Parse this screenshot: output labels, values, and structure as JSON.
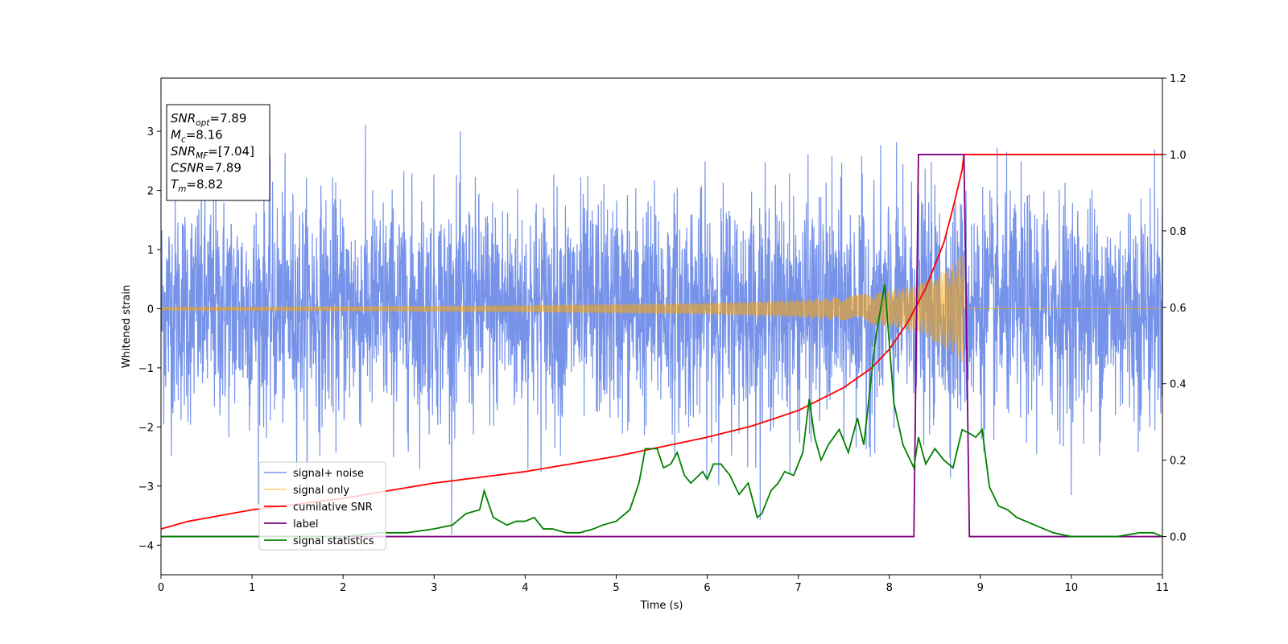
{
  "chart_data": {
    "type": "line",
    "xlabel": "Time (s)",
    "ylabel": "Whitened strain",
    "xlim": [
      0,
      11
    ],
    "ylim": [
      -4.5,
      3.9
    ],
    "ylim_right": [
      -0.1,
      1.2
    ],
    "x_ticks": [
      "0",
      "1",
      "2",
      "3",
      "4",
      "5",
      "6",
      "7",
      "8",
      "9",
      "10",
      "11"
    ],
    "y_ticks": [
      "3",
      "2",
      "1",
      "0",
      "−1",
      "−2",
      "−3",
      "−4"
    ],
    "y_ticks_right": [
      "1.2",
      "1.0",
      "0.8",
      "0.6",
      "0.4",
      "0.2",
      "0.0"
    ],
    "legend_placement": "lower-left",
    "info_box": {
      "lines": [
        {
          "sym": "SNR",
          "sub": "opt",
          "val": "=7.89"
        },
        {
          "sym": "M",
          "sub": "c",
          "val": "=8.16"
        },
        {
          "sym": "SNR",
          "sub": "MF",
          "val": "=[7.04]"
        },
        {
          "sym": "CSNR",
          "sub": "",
          "val": "=7.89"
        },
        {
          "sym": "T",
          "sub": "m",
          "val": "=8.82"
        }
      ]
    },
    "series": [
      {
        "name": "signal+ noise",
        "color": "#4169e1",
        "axis": "left",
        "description": "white noise, std ~1, over 0-11 s",
        "noise_std": 1.0
      },
      {
        "name": "signal only",
        "color": "#ffa500",
        "axis": "left",
        "chirp_start": 0,
        "merger_time": 8.82,
        "amplitude_points": [
          [
            0,
            0.03
          ],
          [
            2,
            0.04
          ],
          [
            4,
            0.06
          ],
          [
            6,
            0.1
          ],
          [
            7,
            0.15
          ],
          [
            7.5,
            0.2
          ],
          [
            8,
            0.3
          ],
          [
            8.3,
            0.4
          ],
          [
            8.5,
            0.55
          ],
          [
            8.7,
            0.75
          ],
          [
            8.82,
            0.95
          ]
        ]
      },
      {
        "name": "cumilative SNR",
        "color": "#ff0000",
        "axis": "right",
        "x": [
          0,
          0.3,
          1,
          2,
          3,
          4,
          5,
          6,
          6.5,
          7,
          7.5,
          7.8,
          8.0,
          8.2,
          8.4,
          8.6,
          8.7,
          8.8,
          8.82,
          11
        ],
        "y": [
          0.02,
          0.04,
          0.07,
          0.1,
          0.14,
          0.17,
          0.21,
          0.26,
          0.29,
          0.33,
          0.39,
          0.44,
          0.49,
          0.56,
          0.65,
          0.77,
          0.86,
          0.96,
          1.0,
          1.0
        ]
      },
      {
        "name": "label",
        "color": "#800080",
        "axis": "right",
        "x": [
          0,
          8.27,
          8.32,
          8.82,
          8.88,
          11
        ],
        "y": [
          0,
          0,
          1,
          1,
          0,
          0
        ]
      },
      {
        "name": "signal statistics",
        "color": "#008000",
        "axis": "right",
        "x": [
          0,
          0.5,
          1,
          1.5,
          2,
          2.4,
          2.7,
          3.0,
          3.2,
          3.35,
          3.5,
          3.55,
          3.65,
          3.8,
          3.9,
          4.0,
          4.1,
          4.2,
          4.3,
          4.45,
          4.6,
          4.75,
          4.85,
          5.0,
          5.15,
          5.25,
          5.32,
          5.45,
          5.52,
          5.6,
          5.67,
          5.75,
          5.82,
          5.95,
          6.0,
          6.07,
          6.15,
          6.25,
          6.35,
          6.45,
          6.55,
          6.6,
          6.7,
          6.78,
          6.85,
          6.95,
          7.05,
          7.12,
          7.18,
          7.25,
          7.33,
          7.45,
          7.55,
          7.65,
          7.72,
          7.85,
          7.95,
          8.05,
          8.15,
          8.27,
          8.32,
          8.4,
          8.5,
          8.6,
          8.7,
          8.8,
          8.88,
          8.95,
          9.02,
          9.1,
          9.2,
          9.3,
          9.4,
          9.5,
          9.6,
          9.7,
          9.8,
          10.0,
          10.2,
          10.5,
          10.75,
          10.9,
          11.0
        ],
        "y": [
          0.0,
          0.0,
          0.0,
          0.0,
          0.0,
          0.01,
          0.01,
          0.02,
          0.03,
          0.06,
          0.07,
          0.12,
          0.05,
          0.03,
          0.04,
          0.04,
          0.05,
          0.02,
          0.02,
          0.01,
          0.01,
          0.02,
          0.03,
          0.04,
          0.07,
          0.14,
          0.23,
          0.23,
          0.18,
          0.19,
          0.22,
          0.16,
          0.14,
          0.17,
          0.15,
          0.19,
          0.19,
          0.16,
          0.11,
          0.14,
          0.05,
          0.06,
          0.12,
          0.14,
          0.17,
          0.16,
          0.22,
          0.36,
          0.26,
          0.2,
          0.24,
          0.28,
          0.22,
          0.31,
          0.24,
          0.52,
          0.66,
          0.35,
          0.24,
          0.18,
          0.26,
          0.19,
          0.23,
          0.2,
          0.18,
          0.28,
          0.27,
          0.26,
          0.28,
          0.13,
          0.08,
          0.07,
          0.05,
          0.04,
          0.03,
          0.02,
          0.01,
          0.0,
          0.0,
          0.0,
          0.01,
          0.01,
          0.0
        ]
      }
    ]
  }
}
